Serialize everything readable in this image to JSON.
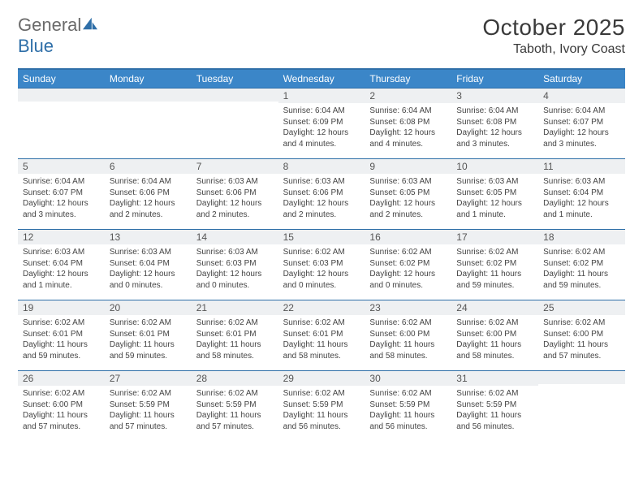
{
  "brand": {
    "word1": "General",
    "word2": "Blue"
  },
  "title": "October 2025",
  "location": "Taboth, Ivory Coast",
  "colors": {
    "header_bar": "#3b86c8",
    "rule": "#2f6fa8",
    "daynum_bg": "#eef0f2",
    "text": "#333333"
  },
  "dow": [
    "Sunday",
    "Monday",
    "Tuesday",
    "Wednesday",
    "Thursday",
    "Friday",
    "Saturday"
  ],
  "weeks": [
    [
      {
        "n": "",
        "lines": []
      },
      {
        "n": "",
        "lines": []
      },
      {
        "n": "",
        "lines": []
      },
      {
        "n": "1",
        "lines": [
          "Sunrise: 6:04 AM",
          "Sunset: 6:09 PM",
          "Daylight: 12 hours and 4 minutes."
        ]
      },
      {
        "n": "2",
        "lines": [
          "Sunrise: 6:04 AM",
          "Sunset: 6:08 PM",
          "Daylight: 12 hours and 4 minutes."
        ]
      },
      {
        "n": "3",
        "lines": [
          "Sunrise: 6:04 AM",
          "Sunset: 6:08 PM",
          "Daylight: 12 hours and 3 minutes."
        ]
      },
      {
        "n": "4",
        "lines": [
          "Sunrise: 6:04 AM",
          "Sunset: 6:07 PM",
          "Daylight: 12 hours and 3 minutes."
        ]
      }
    ],
    [
      {
        "n": "5",
        "lines": [
          "Sunrise: 6:04 AM",
          "Sunset: 6:07 PM",
          "Daylight: 12 hours and 3 minutes."
        ]
      },
      {
        "n": "6",
        "lines": [
          "Sunrise: 6:04 AM",
          "Sunset: 6:06 PM",
          "Daylight: 12 hours and 2 minutes."
        ]
      },
      {
        "n": "7",
        "lines": [
          "Sunrise: 6:03 AM",
          "Sunset: 6:06 PM",
          "Daylight: 12 hours and 2 minutes."
        ]
      },
      {
        "n": "8",
        "lines": [
          "Sunrise: 6:03 AM",
          "Sunset: 6:06 PM",
          "Daylight: 12 hours and 2 minutes."
        ]
      },
      {
        "n": "9",
        "lines": [
          "Sunrise: 6:03 AM",
          "Sunset: 6:05 PM",
          "Daylight: 12 hours and 2 minutes."
        ]
      },
      {
        "n": "10",
        "lines": [
          "Sunrise: 6:03 AM",
          "Sunset: 6:05 PM",
          "Daylight: 12 hours and 1 minute."
        ]
      },
      {
        "n": "11",
        "lines": [
          "Sunrise: 6:03 AM",
          "Sunset: 6:04 PM",
          "Daylight: 12 hours and 1 minute."
        ]
      }
    ],
    [
      {
        "n": "12",
        "lines": [
          "Sunrise: 6:03 AM",
          "Sunset: 6:04 PM",
          "Daylight: 12 hours and 1 minute."
        ]
      },
      {
        "n": "13",
        "lines": [
          "Sunrise: 6:03 AM",
          "Sunset: 6:04 PM",
          "Daylight: 12 hours and 0 minutes."
        ]
      },
      {
        "n": "14",
        "lines": [
          "Sunrise: 6:03 AM",
          "Sunset: 6:03 PM",
          "Daylight: 12 hours and 0 minutes."
        ]
      },
      {
        "n": "15",
        "lines": [
          "Sunrise: 6:02 AM",
          "Sunset: 6:03 PM",
          "Daylight: 12 hours and 0 minutes."
        ]
      },
      {
        "n": "16",
        "lines": [
          "Sunrise: 6:02 AM",
          "Sunset: 6:02 PM",
          "Daylight: 12 hours and 0 minutes."
        ]
      },
      {
        "n": "17",
        "lines": [
          "Sunrise: 6:02 AM",
          "Sunset: 6:02 PM",
          "Daylight: 11 hours and 59 minutes."
        ]
      },
      {
        "n": "18",
        "lines": [
          "Sunrise: 6:02 AM",
          "Sunset: 6:02 PM",
          "Daylight: 11 hours and 59 minutes."
        ]
      }
    ],
    [
      {
        "n": "19",
        "lines": [
          "Sunrise: 6:02 AM",
          "Sunset: 6:01 PM",
          "Daylight: 11 hours and 59 minutes."
        ]
      },
      {
        "n": "20",
        "lines": [
          "Sunrise: 6:02 AM",
          "Sunset: 6:01 PM",
          "Daylight: 11 hours and 59 minutes."
        ]
      },
      {
        "n": "21",
        "lines": [
          "Sunrise: 6:02 AM",
          "Sunset: 6:01 PM",
          "Daylight: 11 hours and 58 minutes."
        ]
      },
      {
        "n": "22",
        "lines": [
          "Sunrise: 6:02 AM",
          "Sunset: 6:01 PM",
          "Daylight: 11 hours and 58 minutes."
        ]
      },
      {
        "n": "23",
        "lines": [
          "Sunrise: 6:02 AM",
          "Sunset: 6:00 PM",
          "Daylight: 11 hours and 58 minutes."
        ]
      },
      {
        "n": "24",
        "lines": [
          "Sunrise: 6:02 AM",
          "Sunset: 6:00 PM",
          "Daylight: 11 hours and 58 minutes."
        ]
      },
      {
        "n": "25",
        "lines": [
          "Sunrise: 6:02 AM",
          "Sunset: 6:00 PM",
          "Daylight: 11 hours and 57 minutes."
        ]
      }
    ],
    [
      {
        "n": "26",
        "lines": [
          "Sunrise: 6:02 AM",
          "Sunset: 6:00 PM",
          "Daylight: 11 hours and 57 minutes."
        ]
      },
      {
        "n": "27",
        "lines": [
          "Sunrise: 6:02 AM",
          "Sunset: 5:59 PM",
          "Daylight: 11 hours and 57 minutes."
        ]
      },
      {
        "n": "28",
        "lines": [
          "Sunrise: 6:02 AM",
          "Sunset: 5:59 PM",
          "Daylight: 11 hours and 57 minutes."
        ]
      },
      {
        "n": "29",
        "lines": [
          "Sunrise: 6:02 AM",
          "Sunset: 5:59 PM",
          "Daylight: 11 hours and 56 minutes."
        ]
      },
      {
        "n": "30",
        "lines": [
          "Sunrise: 6:02 AM",
          "Sunset: 5:59 PM",
          "Daylight: 11 hours and 56 minutes."
        ]
      },
      {
        "n": "31",
        "lines": [
          "Sunrise: 6:02 AM",
          "Sunset: 5:59 PM",
          "Daylight: 11 hours and 56 minutes."
        ]
      },
      {
        "n": "",
        "lines": []
      }
    ]
  ]
}
